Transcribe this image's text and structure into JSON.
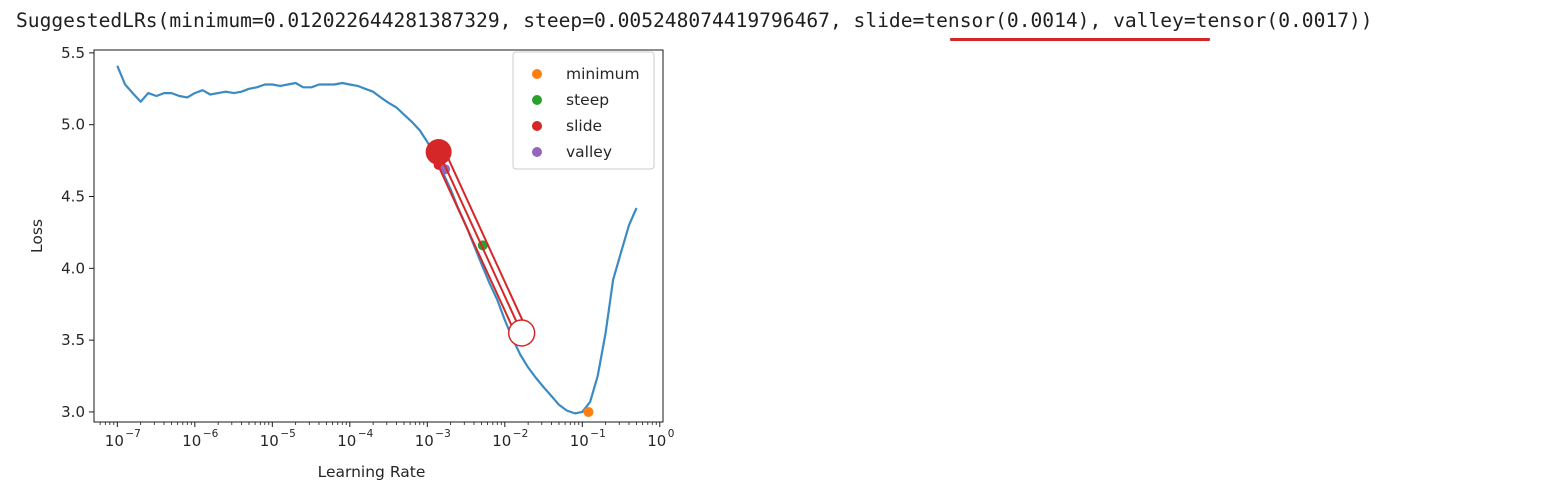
{
  "output": {
    "text": "SuggestedLRs(minimum=0.012022644281387329, steep=0.005248074419796467, slide=tensor(0.0014), valley=tensor(0.0017))",
    "highlight_color": "#d62728"
  },
  "chart_data": {
    "type": "line",
    "xlabel": "Learning Rate",
    "ylabel": "Loss",
    "xscale": "log",
    "xlim": [
      5e-08,
      1.1
    ],
    "ylim": [
      2.93,
      5.52
    ],
    "yticks": [
      3.0,
      3.5,
      4.0,
      4.5,
      5.0,
      5.5
    ],
    "ytick_labels": [
      "3.0",
      "3.5",
      "4.0",
      "4.5",
      "5.0",
      "5.5"
    ],
    "xticks": [
      {
        "value": 1e-07,
        "base": "10",
        "exp": "−7"
      },
      {
        "value": 1e-06,
        "base": "10",
        "exp": "−6"
      },
      {
        "value": 1e-05,
        "base": "10",
        "exp": "−5"
      },
      {
        "value": 0.0001,
        "base": "10",
        "exp": "−4"
      },
      {
        "value": 0.001,
        "base": "10",
        "exp": "−3"
      },
      {
        "value": 0.01,
        "base": "10",
        "exp": "−2"
      },
      {
        "value": 0.1,
        "base": "10",
        "exp": "−1"
      },
      {
        "value": 1,
        "base": "10",
        "exp": "0"
      }
    ],
    "line_color": "#3b8bc2",
    "series": [
      {
        "x": [
          1e-07,
          1.26e-07,
          1.58e-07,
          2e-07,
          2.5e-07,
          3.2e-07,
          4e-07,
          5e-07,
          6.3e-07,
          8e-07,
          1e-06,
          1.26e-06,
          1.58e-06,
          2e-06,
          2.5e-06,
          3.2e-06,
          4e-06,
          5e-06,
          6.3e-06,
          8e-06,
          1e-05,
          1.26e-05,
          1.58e-05,
          2e-05,
          2.5e-05,
          3.2e-05,
          4e-05,
          5e-05,
          6.3e-05,
          8e-05,
          0.0001,
          0.000126,
          0.000158,
          0.0002,
          0.00025,
          0.00032,
          0.0004,
          0.0005,
          0.00063,
          0.0008,
          0.001,
          0.00126,
          0.00158,
          0.002,
          0.0025,
          0.0032,
          0.004,
          0.005,
          0.0063,
          0.008,
          0.01,
          0.0126,
          0.0158,
          0.02,
          0.025,
          0.032,
          0.04,
          0.05,
          0.063,
          0.08,
          0.1,
          0.126,
          0.158,
          0.2,
          0.25,
          0.32,
          0.4,
          0.5
        ],
        "y": [
          5.41,
          5.28,
          5.22,
          5.16,
          5.22,
          5.2,
          5.22,
          5.22,
          5.2,
          5.19,
          5.22,
          5.24,
          5.21,
          5.22,
          5.23,
          5.22,
          5.23,
          5.25,
          5.26,
          5.28,
          5.28,
          5.27,
          5.28,
          5.29,
          5.26,
          5.26,
          5.28,
          5.28,
          5.28,
          5.29,
          5.28,
          5.27,
          5.25,
          5.23,
          5.19,
          5.15,
          5.12,
          5.07,
          5.02,
          4.96,
          4.88,
          4.78,
          4.67,
          4.55,
          4.42,
          4.29,
          4.16,
          4.03,
          3.9,
          3.78,
          3.64,
          3.51,
          3.4,
          3.31,
          3.24,
          3.17,
          3.11,
          3.05,
          3.01,
          2.99,
          3.0,
          3.07,
          3.25,
          3.55,
          3.92,
          4.12,
          4.3,
          4.42
        ]
      }
    ],
    "legend": {
      "placement": "top-right",
      "entries": [
        {
          "label": "minimum",
          "color": "#ff7f0e"
        },
        {
          "label": "steep",
          "color": "#2ca02c"
        },
        {
          "label": "slide",
          "color": "#d62728"
        },
        {
          "label": "valley",
          "color": "#9467bd"
        }
      ]
    },
    "markers": [
      {
        "label": "minimum",
        "x": 0.12,
        "y": 3.0,
        "color": "#ff7f0e"
      },
      {
        "label": "steep",
        "x": 0.0052,
        "y": 4.16,
        "color": "#2ca02c"
      },
      {
        "label": "slide",
        "x": 0.0014,
        "y": 4.72,
        "color": "#d62728"
      },
      {
        "label": "valley",
        "x": 0.0017,
        "y": 4.69,
        "color": "#9467bd"
      }
    ],
    "annotation": {
      "from": {
        "x": 0.0014,
        "y": 4.81
      },
      "to": {
        "x": 0.0165,
        "y": 3.55
      },
      "color": "#d62728"
    }
  }
}
